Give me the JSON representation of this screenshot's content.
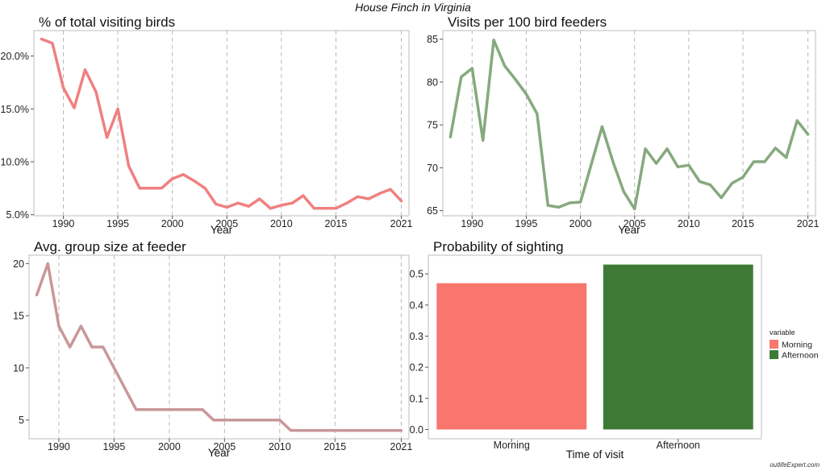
{
  "figure_title": "House Finch in Virginia",
  "credit": "outlifeExpert.com",
  "chart_data": [
    {
      "type": "line",
      "title": "% of total visiting birds",
      "xlabel": "Year",
      "ylabel": "",
      "color": "#f08080",
      "grid": "vertical dashed",
      "xlim": [
        1987.3,
        2021.7
      ],
      "ylim": [
        4.9,
        22.4
      ],
      "xticks": [
        1990,
        1995,
        2000,
        2005,
        2010,
        2015,
        2021
      ],
      "yticks": [
        5,
        10,
        15,
        20
      ],
      "ytick_labels": [
        "5.0%",
        "10.0%",
        "15.0%",
        "20.0%"
      ],
      "x": [
        1988,
        1989,
        1990,
        1991,
        1992,
        1993,
        1994,
        1995,
        1996,
        1997,
        1998,
        1999,
        2000,
        2001,
        2002,
        2003,
        2004,
        2005,
        2006,
        2007,
        2008,
        2009,
        2010,
        2011,
        2012,
        2013,
        2014,
        2015,
        2016,
        2017,
        2018,
        2019,
        2020,
        2021
      ],
      "values": [
        21.6,
        21.2,
        17.0,
        15.1,
        18.7,
        16.6,
        12.3,
        15.0,
        9.6,
        7.5,
        7.5,
        7.5,
        8.4,
        8.8,
        8.2,
        7.5,
        6.0,
        5.7,
        6.1,
        5.8,
        6.5,
        5.6,
        5.9,
        6.1,
        6.8,
        5.6,
        5.6,
        5.6,
        6.1,
        6.7,
        6.5,
        7.0,
        7.4,
        6.3
      ]
    },
    {
      "type": "line",
      "title": "Visits per 100 bird feeders",
      "xlabel": "Year",
      "ylabel": "",
      "color": "#86a97e",
      "grid": "vertical dashed",
      "xlim": [
        1987.3,
        2021.7
      ],
      "ylim": [
        64.4,
        86.0
      ],
      "xticks": [
        1990,
        1995,
        2000,
        2005,
        2010,
        2015,
        2021
      ],
      "yticks": [
        65,
        70,
        75,
        80,
        85
      ],
      "ytick_labels": [
        "65",
        "70",
        "75",
        "80",
        "85"
      ],
      "x": [
        1988,
        1989,
        1990,
        1991,
        1992,
        1993,
        1994,
        1995,
        1996,
        1997,
        1998,
        1999,
        2000,
        2001,
        2002,
        2003,
        2004,
        2005,
        2006,
        2007,
        2008,
        2009,
        2010,
        2011,
        2012,
        2013,
        2014,
        2015,
        2016,
        2017,
        2018,
        2019,
        2020,
        2021
      ],
      "values": [
        73.6,
        80.6,
        81.6,
        73.2,
        84.9,
        81.9,
        80.3,
        78.6,
        76.3,
        65.6,
        65.4,
        65.9,
        66.0,
        70.4,
        74.8,
        70.7,
        67.2,
        65.2,
        72.2,
        70.5,
        72.2,
        70.1,
        70.3,
        68.4,
        68.0,
        66.5,
        68.2,
        68.9,
        70.7,
        70.7,
        72.3,
        71.2,
        75.5,
        73.9
      ]
    },
    {
      "type": "line",
      "title": "Avg. group size at feeder",
      "xlabel": "Year",
      "ylabel": "",
      "color": "#c9979a",
      "grid": "vertical dashed",
      "xlim": [
        1987.3,
        2021.7
      ],
      "ylim": [
        3.2,
        20.8
      ],
      "xticks": [
        1990,
        1995,
        2000,
        2005,
        2010,
        2015,
        2021
      ],
      "yticks": [
        5,
        10,
        15,
        20
      ],
      "ytick_labels": [
        "5",
        "10",
        "15",
        "20"
      ],
      "x": [
        1988,
        1989,
        1990,
        1991,
        1992,
        1993,
        1994,
        1995,
        1996,
        1997,
        1998,
        1999,
        2000,
        2001,
        2002,
        2003,
        2004,
        2005,
        2006,
        2007,
        2008,
        2009,
        2010,
        2011,
        2012,
        2013,
        2014,
        2015,
        2016,
        2017,
        2018,
        2019,
        2020,
        2021
      ],
      "values": [
        17,
        20,
        14,
        12,
        14,
        12,
        12,
        10,
        8,
        6,
        6,
        6,
        6,
        6,
        6,
        6,
        5,
        5,
        5,
        5,
        5,
        5,
        5,
        4,
        4,
        4,
        4,
        4,
        4,
        4,
        4,
        4,
        4,
        4
      ]
    },
    {
      "type": "bar",
      "title": "Probability of sighting",
      "xlabel": "Time of visit",
      "ylabel": "",
      "grid": "none",
      "ylim": [
        -0.03,
        0.56
      ],
      "yticks": [
        0.0,
        0.1,
        0.2,
        0.3,
        0.4,
        0.5
      ],
      "ytick_labels": [
        "0.0",
        "0.1",
        "0.2",
        "0.3",
        "0.4",
        "0.5"
      ],
      "categories": [
        "Morning",
        "Afternoon"
      ],
      "values": [
        0.47,
        0.53
      ],
      "colors": [
        "#f8766d",
        "#3d7a36"
      ],
      "legend": {
        "title": "variable",
        "position": "right",
        "items": [
          "Morning",
          "Afternoon"
        ]
      }
    }
  ]
}
